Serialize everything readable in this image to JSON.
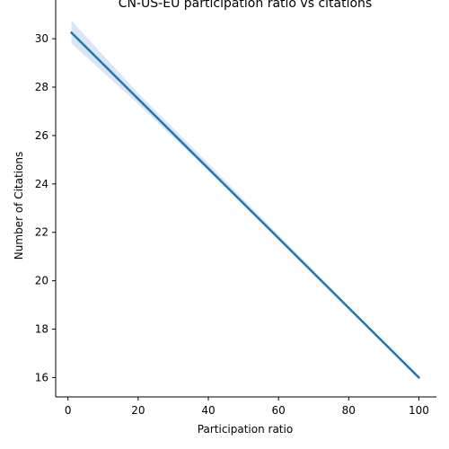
{
  "chart_data": {
    "type": "line",
    "title": "CN-US-EU participation ratio vs citations",
    "xlabel": "Participation ratio",
    "ylabel": "Number of Citations",
    "xlim": [
      -3.5,
      105
    ],
    "ylim": [
      15.2,
      31.6
    ],
    "xticks": [
      0,
      20,
      40,
      60,
      80,
      100
    ],
    "yticks": [
      16,
      18,
      20,
      22,
      24,
      26,
      28,
      30
    ],
    "grid": false,
    "series": [
      {
        "values": [
          {
            "x": 1,
            "y": 30.25
          },
          {
            "x": 100,
            "y": 16.0
          }
        ],
        "color": "#1f77b4"
      }
    ],
    "confidence_band": {
      "color": "#aec7e8",
      "upper": [
        {
          "x": 1,
          "y": 30.75
        },
        {
          "x": 20,
          "y": 27.75
        },
        {
          "x": 40,
          "y": 24.85
        },
        {
          "x": 60,
          "y": 21.9
        },
        {
          "x": 80,
          "y": 18.95
        },
        {
          "x": 100,
          "y": 16.05
        }
      ],
      "lower": [
        {
          "x": 1,
          "y": 29.8
        },
        {
          "x": 20,
          "y": 27.3
        },
        {
          "x": 40,
          "y": 24.55
        },
        {
          "x": 60,
          "y": 21.7
        },
        {
          "x": 80,
          "y": 18.85
        },
        {
          "x": 100,
          "y": 15.95
        }
      ]
    }
  }
}
